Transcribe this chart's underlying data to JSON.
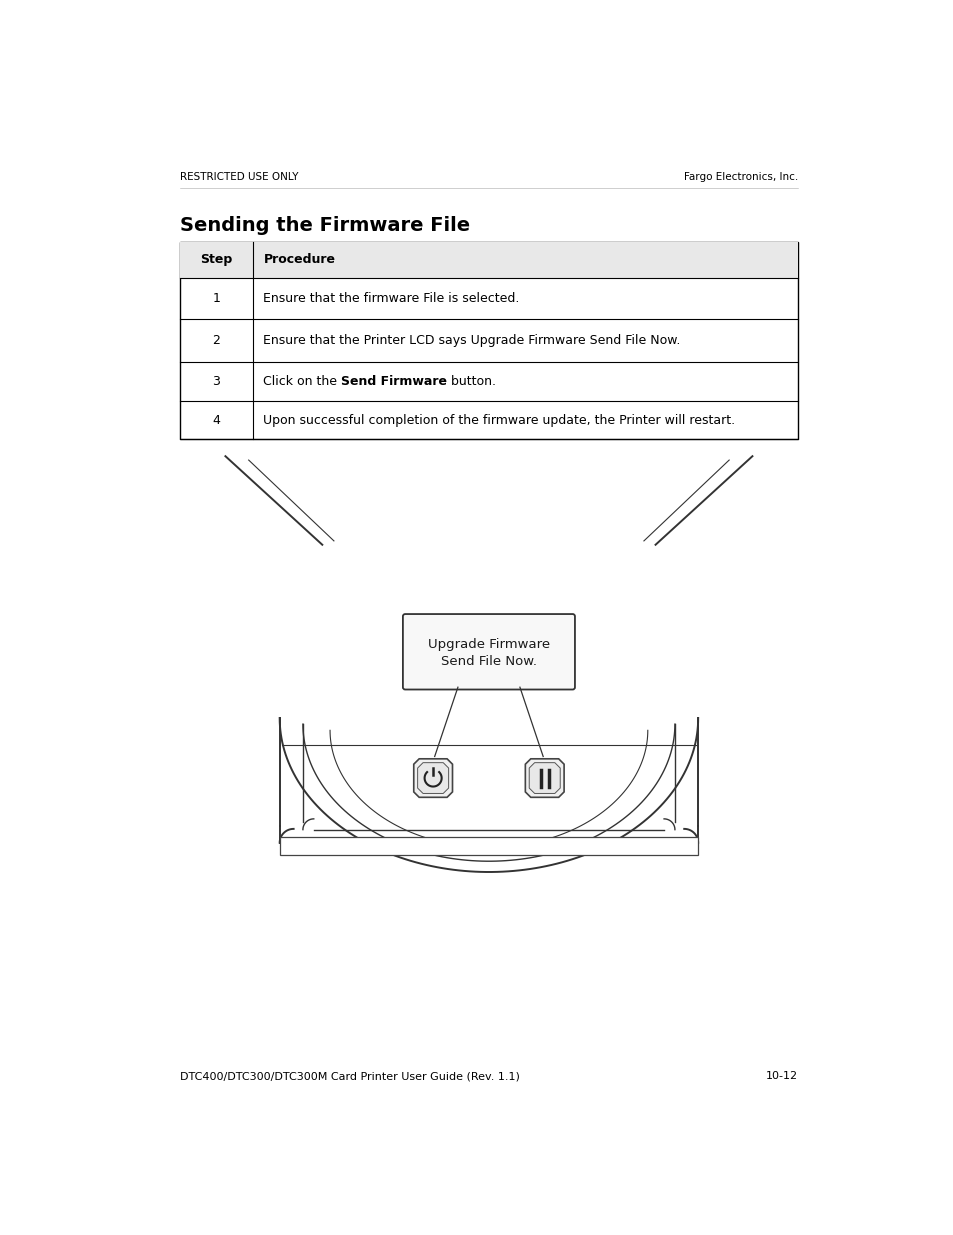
{
  "page_header_left": "RESTRICTED USE ONLY",
  "page_header_right": "Fargo Electronics, Inc.",
  "title": "Sending the Firmware File",
  "table_headers": [
    "Step",
    "Procedure"
  ],
  "table_rows": [
    [
      "1",
      "Ensure that the firmware File is selected."
    ],
    [
      "2",
      "Ensure that the Printer LCD says Upgrade Firmware Send File Now."
    ],
    [
      "3",
      "Click on the **Send Firmware** button."
    ],
    [
      "4",
      "Upon successful completion of the firmware update, the Printer will restart."
    ]
  ],
  "footer_left": "DTC400/DTC300/DTC300M Card Printer User Guide (Rev. 1.1)",
  "footer_right": "10-12",
  "bg_color": "#ffffff",
  "text_color": "#000000",
  "header_font_size": 7.5,
  "title_font_size": 14,
  "table_font_size": 9,
  "footer_font_size": 8,
  "lcd_text_line1": "Upgrade Firmware",
  "lcd_text_line2": "Send File Now."
}
